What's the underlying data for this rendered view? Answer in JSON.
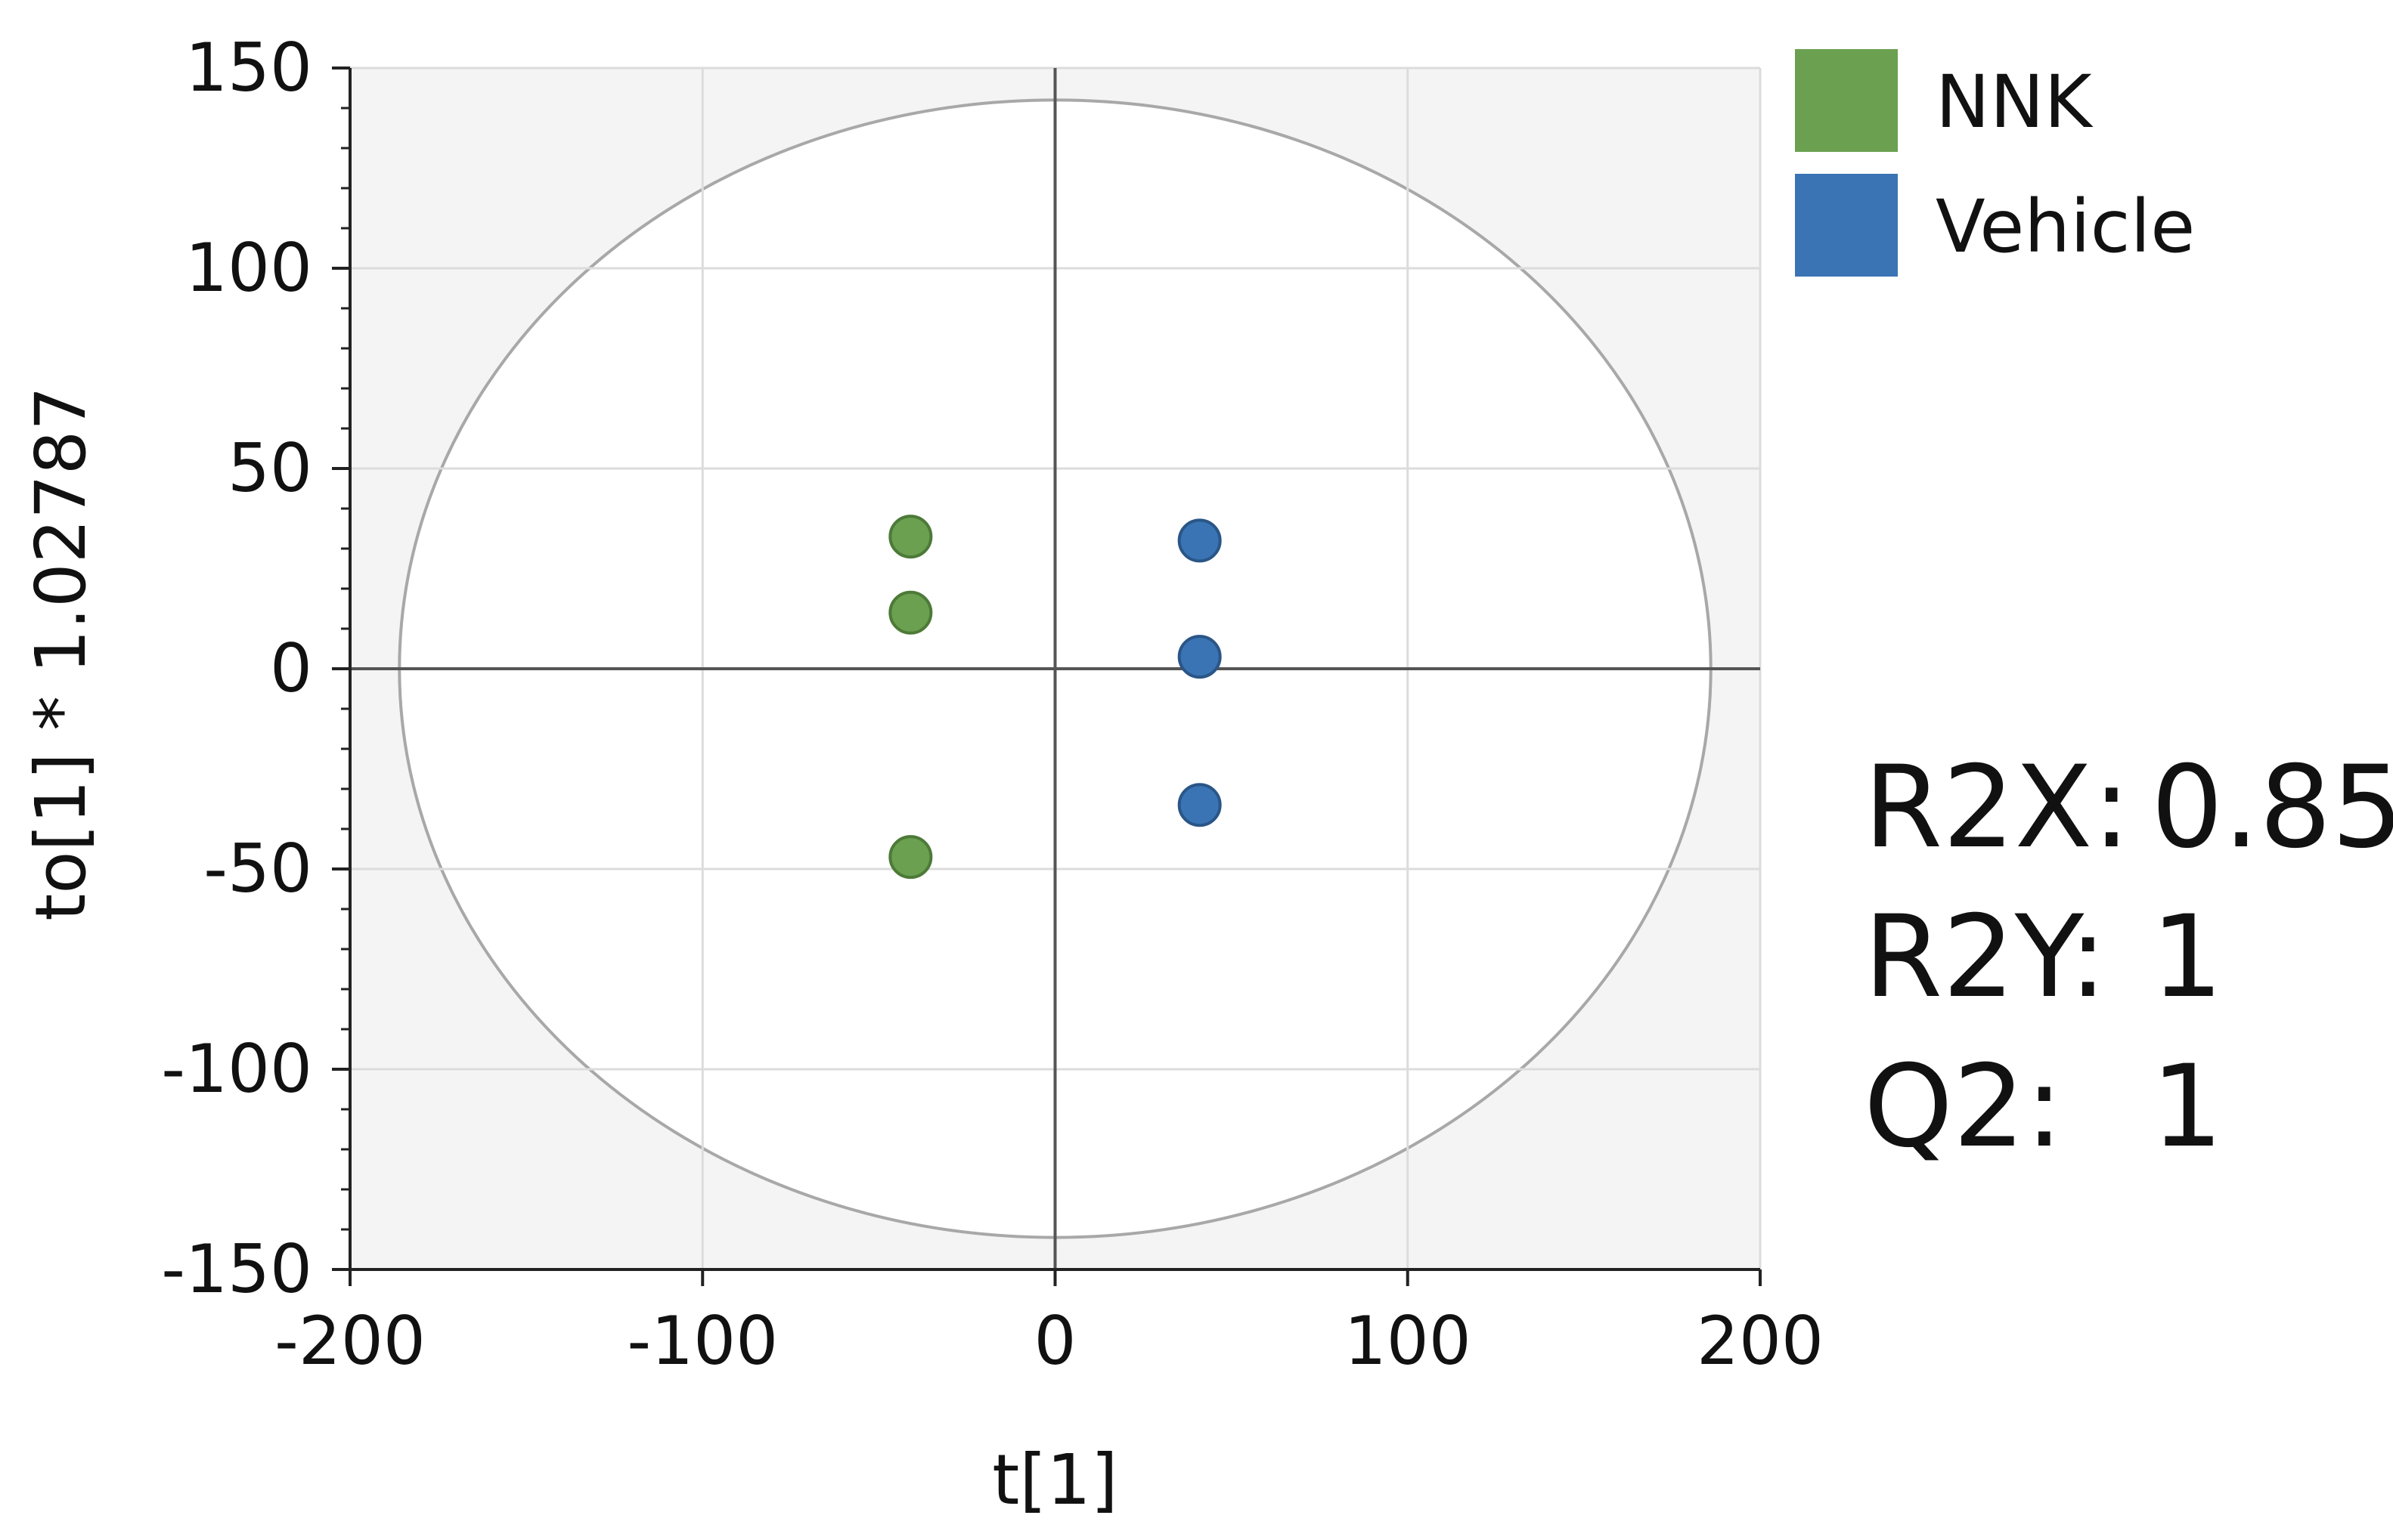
{
  "chart_data": {
    "type": "scatter",
    "title": "",
    "xlabel": "t[1]",
    "ylabel": "to[1] * 1.02787",
    "xlim": [
      -200,
      200
    ],
    "ylim": [
      -150,
      150
    ],
    "xticks": [
      -200,
      -100,
      0,
      100,
      200
    ],
    "yticks": [
      150,
      100,
      50,
      0,
      -50,
      -100,
      -150
    ],
    "tick_labels_x": [
      "-200",
      "-100",
      "0",
      "100",
      "200"
    ],
    "tick_labels_y": [
      "150",
      "100",
      "50",
      "0",
      "-50",
      "-100",
      "-150"
    ],
    "grid": true,
    "ellipse": {
      "rx": 186,
      "ry": 142
    },
    "legend_position": "top-right",
    "series": [
      {
        "name": "NNK",
        "color": "#6aa050",
        "stroke": "#4d7a38",
        "x": [
          -41,
          -41,
          -41
        ],
        "y": [
          33,
          14,
          -47
        ]
      },
      {
        "name": "Vehicle",
        "color": "#3a74b4",
        "stroke": "#2a5687",
        "x": [
          41,
          41,
          41
        ],
        "y": [
          32,
          3,
          -34
        ]
      }
    ]
  },
  "stats": [
    {
      "label": "R2X:",
      "value": "0.85"
    },
    {
      "label": "R2Y:",
      "value": "1"
    },
    {
      "label": "Q2:",
      "value": "1"
    }
  ]
}
